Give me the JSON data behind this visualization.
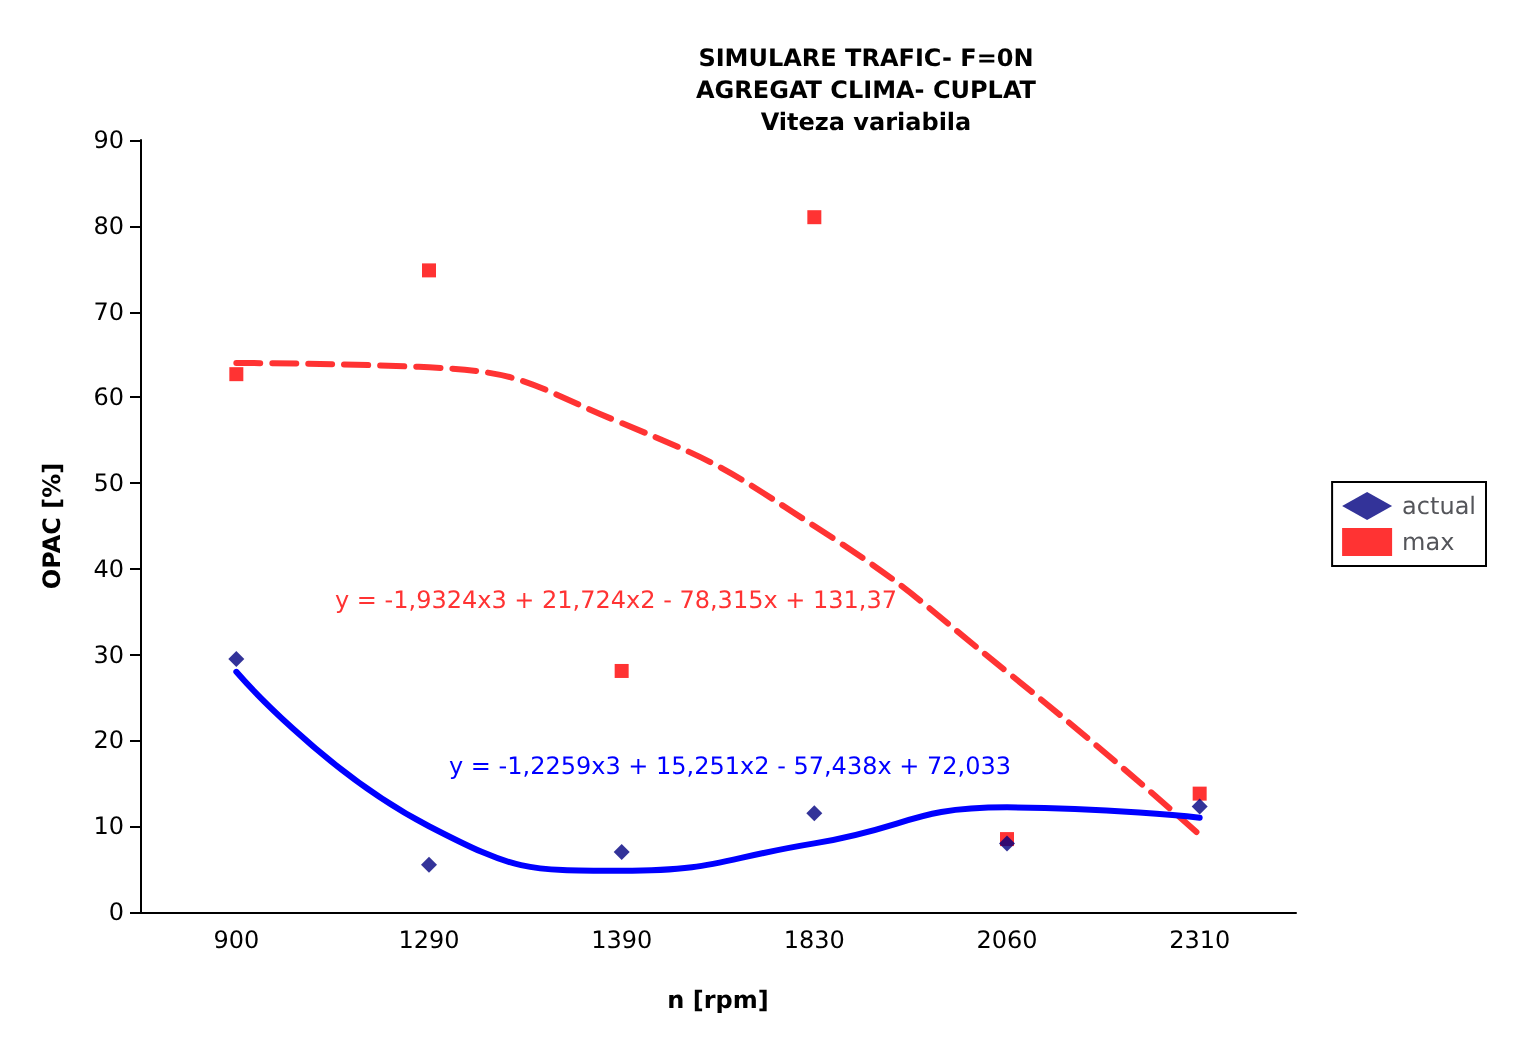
{
  "chart_data": {
    "type": "scatter",
    "title": "SIMULARE TRAFIC- F=0N\nAGREGAT CLIMA- CUPLAT",
    "subtitle": "Viteza variabila",
    "xlabel": "n [rpm]",
    "ylabel": "OPAC [%]",
    "categories": [
      "900",
      "1290",
      "1390",
      "1830",
      "2060",
      "2310"
    ],
    "series": [
      {
        "name": "actual",
        "marker": "diamond",
        "color": "#000080",
        "values": [
          29.5,
          5.5,
          7,
          11.5,
          8,
          12.3
        ]
      },
      {
        "name": "max",
        "marker": "square",
        "color": "#ff0000",
        "values": [
          62.7,
          74.8,
          28.1,
          81,
          8.5,
          13.8
        ]
      },
      {
        "type": "line",
        "marker": "none",
        "line_style": "dashed",
        "color": "#ff3333",
        "values": [
          64,
          63.5,
          57,
          45,
          28,
          9
        ]
      },
      {
        "type": "line",
        "marker": "none",
        "line_style": "solid",
        "color": "#0000ff",
        "values": [
          28,
          10,
          4.8,
          8,
          12.2,
          11
        ]
      }
    ],
    "annotations": [
      "y = -1,9324x3 + 21,724x2 - 78,315x + 131,37",
      "y = -1,2259x3 + 15,251x2 - 57,438x + 72,033"
    ],
    "ylim": [
      0,
      90
    ],
    "yticks": [
      0,
      10,
      20,
      30,
      40,
      50,
      60,
      70,
      80,
      90
    ],
    "grid": false,
    "legend": "right"
  }
}
